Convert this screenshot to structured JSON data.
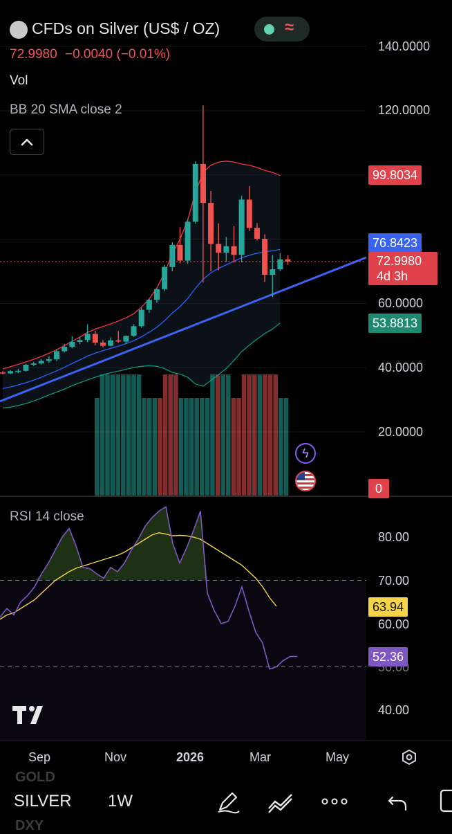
{
  "header": {
    "symbol_title": "CFDs on Silver (US$ / OZ)",
    "last_price": "72.9980",
    "change": "−0.0040 (−0.01%)",
    "vol_label": "Vol",
    "bb_label": "BB 20 SMA close 2",
    "rsi_label": "RSI 14 close",
    "status_icon": "market-open-dot",
    "wave_icon": "≈"
  },
  "colors": {
    "up": "#26a69a",
    "down": "#ef5350",
    "bb_upper": "#f23645",
    "bb_basis": "#2962ff",
    "bb_lower": "#089981",
    "trendline": "#3d63f5",
    "rsi_line": "#7e57c2",
    "rsi_ma": "#f5d547"
  },
  "price_axis": {
    "ticks": [
      "140.0000",
      "120.0000",
      "60.0000",
      "40.0000",
      "20.0000"
    ],
    "tags": {
      "bb_upper": "99.8034",
      "bb_basis": "76.8423",
      "last": "72.9980",
      "countdown": "4d 3h",
      "bb_lower": "53.8813",
      "volume": "0"
    }
  },
  "rsi_axis": {
    "ticks": [
      "80.00",
      "70.00",
      "60.00",
      "50.00",
      "40.00"
    ],
    "tags": {
      "rsi_ma": "63.94",
      "rsi": "52.36"
    }
  },
  "time_axis": {
    "labels": [
      "Sep",
      "Nov",
      "2026",
      "Mar",
      "May"
    ]
  },
  "bottom_bar": {
    "symbol": "SILVER",
    "interval": "1W",
    "ghost_above": "GOLD",
    "ghost_below": "DXY"
  },
  "chart_data": {
    "type": "candlestick",
    "interval": "1W",
    "series": [
      {
        "o": 38.5,
        "h": 38.9,
        "l": 37.9,
        "c": 38.2
      },
      {
        "o": 38.2,
        "h": 39.2,
        "l": 38.0,
        "c": 38.9
      },
      {
        "o": 38.9,
        "h": 39.6,
        "l": 38.3,
        "c": 39.0
      },
      {
        "o": 39.0,
        "h": 41.2,
        "l": 38.8,
        "c": 40.9
      },
      {
        "o": 40.9,
        "h": 41.8,
        "l": 40.5,
        "c": 41.3
      },
      {
        "o": 41.3,
        "h": 42.6,
        "l": 41.0,
        "c": 42.1
      },
      {
        "o": 42.1,
        "h": 43.5,
        "l": 41.5,
        "c": 42.6
      },
      {
        "o": 42.6,
        "h": 45.8,
        "l": 42.0,
        "c": 45.1
      },
      {
        "o": 45.1,
        "h": 47.4,
        "l": 44.7,
        "c": 46.5
      },
      {
        "o": 46.5,
        "h": 49.8,
        "l": 46.0,
        "c": 48.0
      },
      {
        "o": 48.0,
        "h": 49.6,
        "l": 47.3,
        "c": 48.6
      },
      {
        "o": 48.6,
        "h": 53.5,
        "l": 47.9,
        "c": 50.5
      },
      {
        "o": 50.5,
        "h": 51.5,
        "l": 46.9,
        "c": 47.8
      },
      {
        "o": 47.8,
        "h": 48.6,
        "l": 46.3,
        "c": 46.8
      },
      {
        "o": 46.8,
        "h": 49.4,
        "l": 46.6,
        "c": 48.5
      },
      {
        "o": 48.5,
        "h": 51.4,
        "l": 47.7,
        "c": 48.1
      },
      {
        "o": 48.1,
        "h": 50.0,
        "l": 47.4,
        "c": 49.9
      },
      {
        "o": 49.9,
        "h": 53.5,
        "l": 49.5,
        "c": 52.9
      },
      {
        "o": 52.9,
        "h": 58.6,
        "l": 52.4,
        "c": 58.0
      },
      {
        "o": 58.0,
        "h": 61.5,
        "l": 57.1,
        "c": 61.1
      },
      {
        "o": 61.1,
        "h": 64.6,
        "l": 60.2,
        "c": 64.4
      },
      {
        "o": 64.4,
        "h": 72.0,
        "l": 63.8,
        "c": 71.3
      },
      {
        "o": 71.3,
        "h": 79.0,
        "l": 70.0,
        "c": 78.2
      },
      {
        "o": 78.2,
        "h": 83.7,
        "l": 72.4,
        "c": 73.3
      },
      {
        "o": 73.3,
        "h": 86.3,
        "l": 72.3,
        "c": 85.4
      },
      {
        "o": 85.4,
        "h": 104.2,
        "l": 84.8,
        "c": 103.4
      },
      {
        "o": 103.4,
        "h": 121.6,
        "l": 66.5,
        "c": 91.3
      },
      {
        "o": 91.3,
        "h": 95.0,
        "l": 70.0,
        "c": 78.5
      },
      {
        "o": 78.5,
        "h": 84.9,
        "l": 70.3,
        "c": 75.8
      },
      {
        "o": 75.8,
        "h": 80.7,
        "l": 72.9,
        "c": 77.8
      },
      {
        "o": 77.8,
        "h": 84.0,
        "l": 72.7,
        "c": 75.1
      },
      {
        "o": 75.1,
        "h": 93.5,
        "l": 72.8,
        "c": 92.3
      },
      {
        "o": 92.3,
        "h": 96.5,
        "l": 82.5,
        "c": 83.5
      },
      {
        "o": 83.5,
        "h": 85.0,
        "l": 79.6,
        "c": 80.1
      },
      {
        "o": 80.1,
        "h": 81.5,
        "l": 66.7,
        "c": 68.9
      },
      {
        "o": 68.9,
        "h": 75.1,
        "l": 62.0,
        "c": 70.6
      },
      {
        "o": 70.6,
        "h": 75.6,
        "l": 70.1,
        "c": 73.7
      },
      {
        "o": 73.7,
        "h": 75.0,
        "l": 72.0,
        "c": 73.0
      }
    ],
    "volume_dir": [
      "up",
      "up",
      "up",
      "up",
      "up",
      "up",
      "up",
      "up",
      "up",
      "up",
      "up",
      "up",
      "down",
      "down",
      "down",
      "down",
      "up",
      "up",
      "up",
      "up",
      "up",
      "up",
      "up",
      "down",
      "up",
      "up",
      "down",
      "down",
      "down",
      "down",
      "down",
      "up",
      "down",
      "down",
      "down",
      "up",
      "up"
    ],
    "bb_upper": [
      39.6,
      40.3,
      41.0,
      41.8,
      42.6,
      43.5,
      44.5,
      45.6,
      46.9,
      48.2,
      49.5,
      51.0,
      52.0,
      52.8,
      53.6,
      54.5,
      55.5,
      56.8,
      58.8,
      61.4,
      64.8,
      69.5,
      75.5,
      80.0,
      86.0,
      94.5,
      100.8,
      103.0,
      104.0,
      104.3,
      104.0,
      103.4,
      103.0,
      102.3,
      101.4,
      100.8,
      99.8
    ],
    "bb_basis": [
      33.5,
      34.0,
      34.6,
      35.3,
      36.1,
      37.0,
      38.0,
      39.0,
      40.1,
      41.3,
      42.4,
      43.6,
      44.5,
      45.3,
      46.0,
      46.7,
      47.5,
      48.4,
      49.6,
      51.0,
      52.6,
      54.6,
      57.0,
      59.0,
      61.5,
      64.7,
      67.5,
      69.5,
      70.9,
      72.0,
      73.1,
      74.2,
      75.0,
      75.6,
      76.0,
      76.4,
      76.8
    ],
    "bb_lower": [
      27.4,
      27.7,
      28.2,
      28.8,
      29.6,
      30.5,
      31.5,
      32.4,
      33.3,
      34.4,
      35.3,
      36.2,
      37.0,
      37.8,
      38.4,
      38.9,
      39.5,
      40.0,
      40.4,
      40.6,
      40.4,
      39.7,
      38.5,
      38.0,
      37.0,
      34.9,
      34.2,
      36.0,
      37.8,
      39.7,
      42.2,
      45.0,
      47.0,
      48.9,
      50.6,
      52.0,
      53.9
    ],
    "rsi": [
      61.5,
      63.5,
      62.0,
      65.0,
      66.5,
      68.5,
      71.5,
      74.0,
      77.0,
      80.0,
      82.0,
      78.0,
      73.0,
      72.7,
      71.5,
      70.5,
      73.0,
      72.0,
      74.0,
      77.0,
      79.5,
      82.5,
      84.5,
      86.0,
      87.0,
      78.5,
      74.0,
      77.5,
      81.5,
      86.0,
      67.0,
      63.0,
      60.0,
      60.5,
      64.0,
      68.5,
      63.0,
      58.0,
      55.5,
      49.5,
      50.0,
      51.5,
      52.4,
      52.4
    ],
    "rsi_ma": [
      61.0,
      62.0,
      62.5,
      63.5,
      64.5,
      65.5,
      67.0,
      68.5,
      70.0,
      71.0,
      72.0,
      72.8,
      73.3,
      73.8,
      74.3,
      74.8,
      75.3,
      75.8,
      76.5,
      77.5,
      78.5,
      79.5,
      80.5,
      81.0,
      80.7,
      80.3,
      80.4,
      80.3,
      80.0,
      79.5,
      78.5,
      77.5,
      76.5,
      75.5,
      74.5,
      73.5,
      72.0,
      70.5,
      68.5,
      66.0,
      64.0
    ],
    "price_range": [
      0,
      150
    ],
    "rsi_range": [
      35,
      93
    ],
    "trendline": {
      "from": 29.5,
      "to": 73.0
    },
    "last_price": 72.998
  }
}
